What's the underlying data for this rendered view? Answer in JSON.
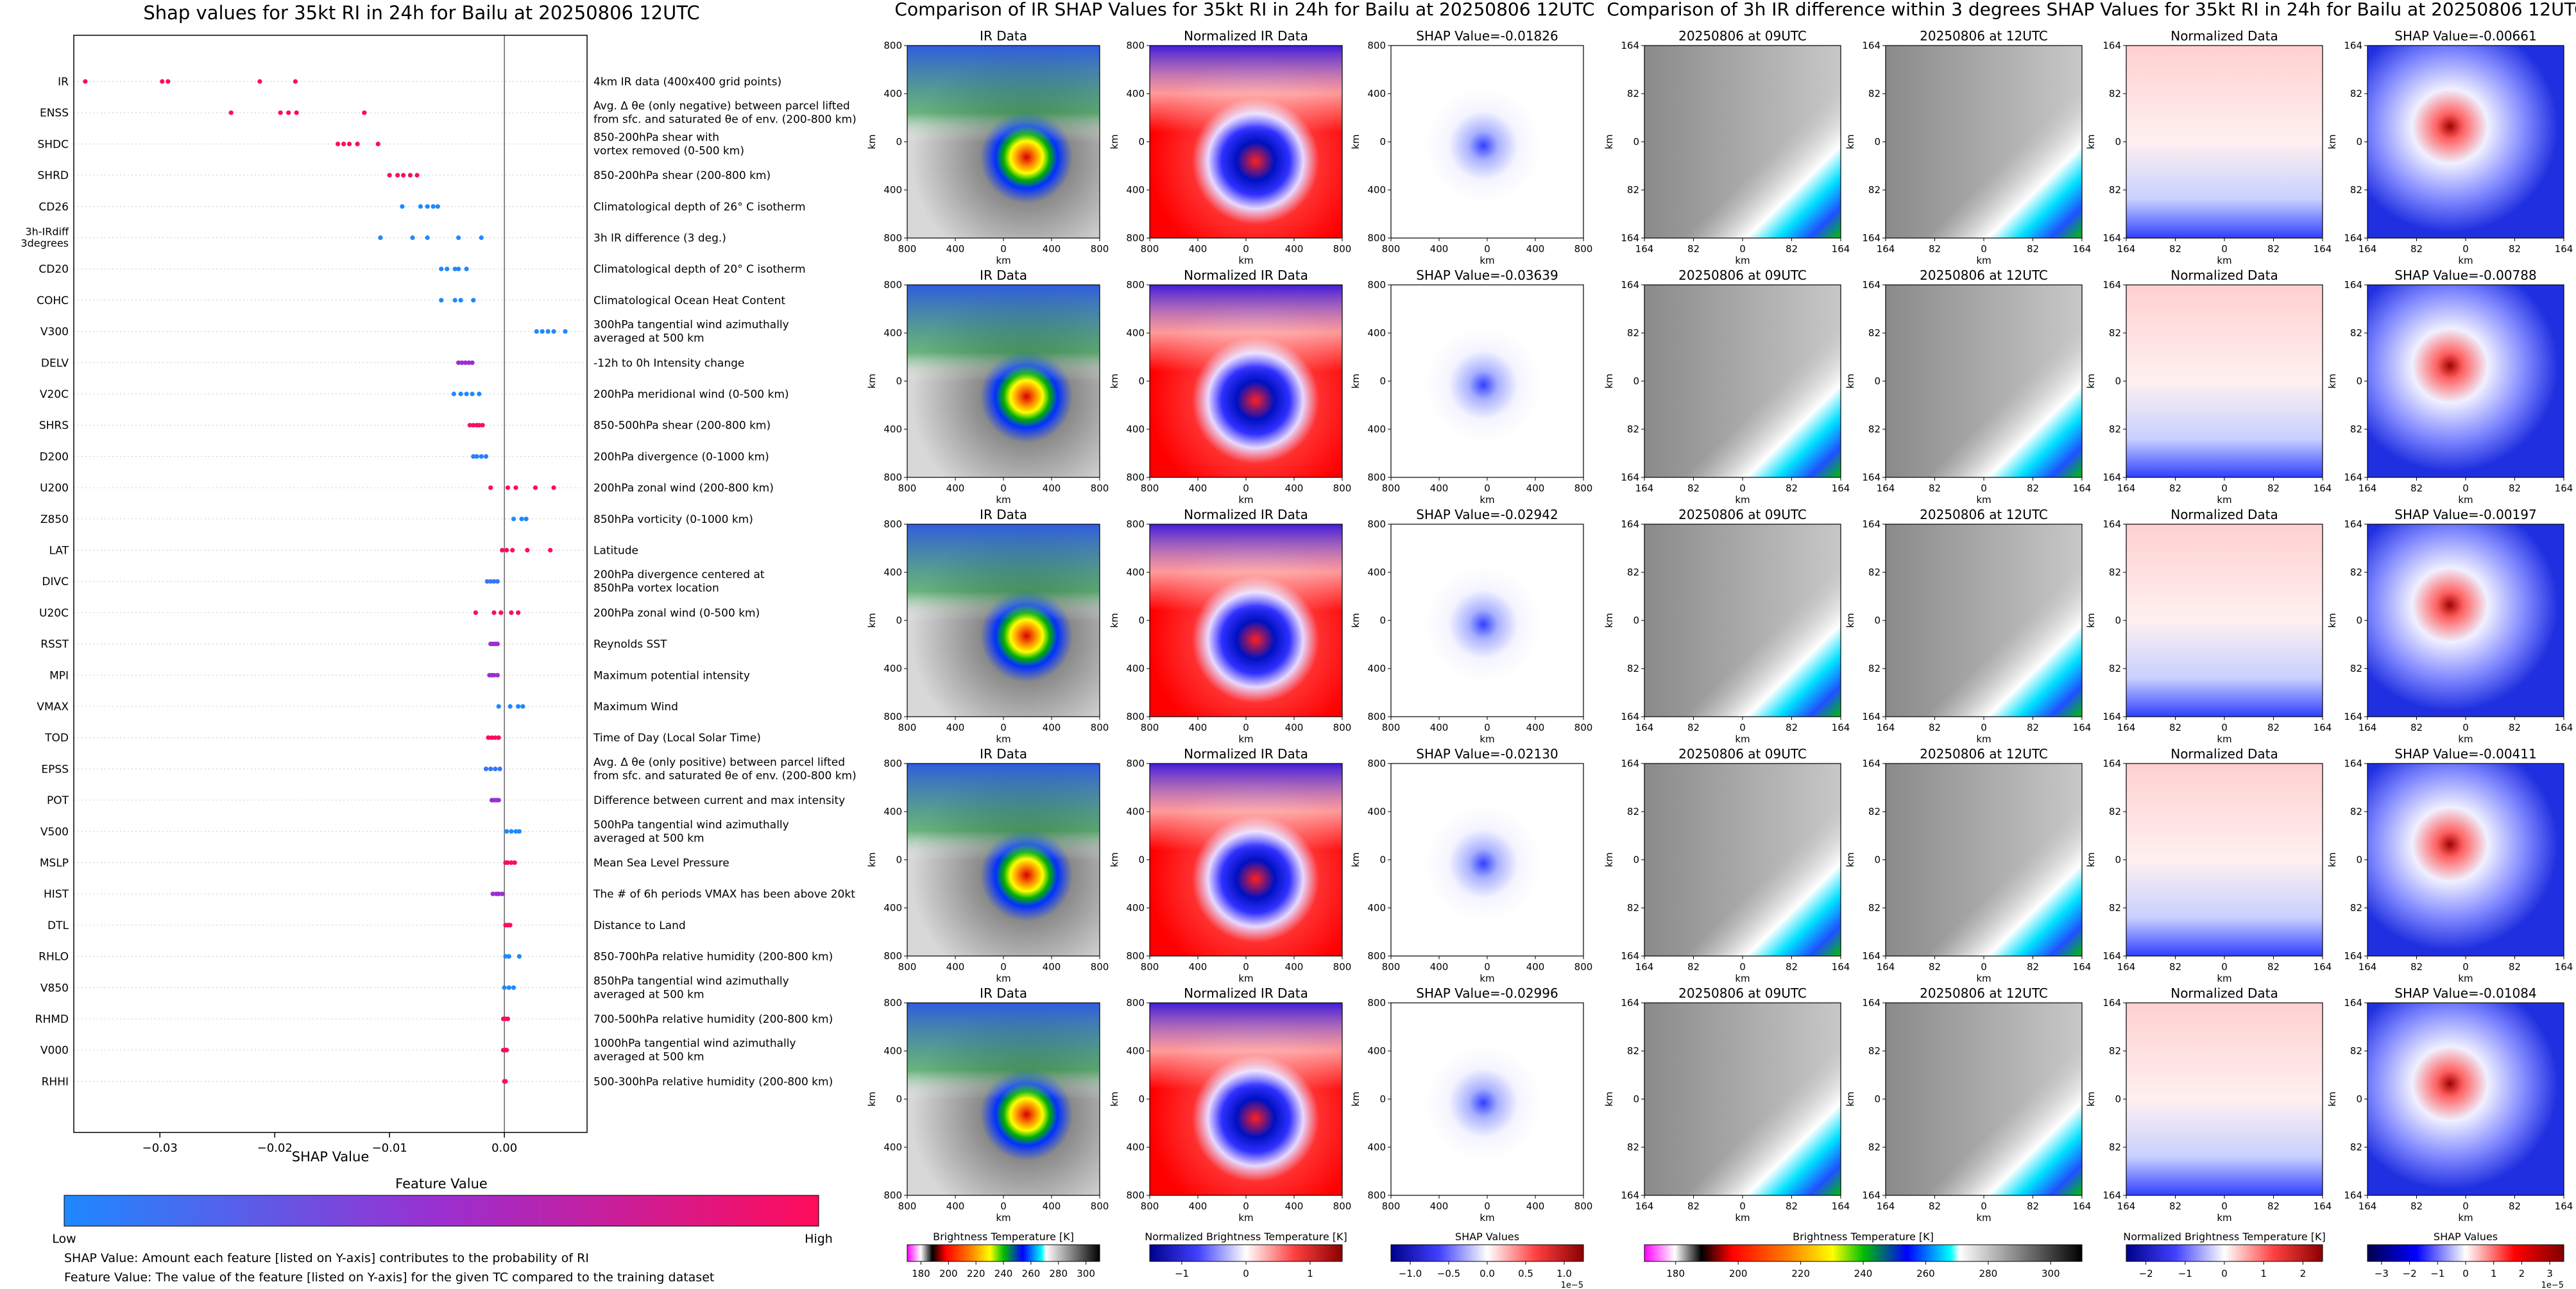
{
  "beeswarm": {
    "title": "Shap values for 35kt RI in 24h for Bailu at 20250806 12UTC",
    "xlabel": "SHAP Value",
    "xticks": [
      "−0.03",
      "−0.02",
      "−0.01",
      "0.00"
    ],
    "colorbar_title": "Feature Value",
    "colorbar_low": "Low",
    "colorbar_high": "High",
    "note1": "SHAP Value: Amount each feature [listed on Y-axis] contributes to the probability of RI",
    "note2": "Feature Value: The value of the feature [listed on Y-axis] for the given TC compared to the training dataset"
  },
  "chart_data": {
    "type": "scatter",
    "xlabel": "SHAP Value",
    "xlim": [
      -0.0375,
      0.0072
    ],
    "colors": {
      "low": "#1e88ff",
      "mid": "#9b2fd0",
      "high": "#ff0b5a"
    },
    "features": [
      {
        "name": "IR",
        "desc": [
          "4km IR data (400x400 grid points)"
        ],
        "points": [
          [
            -0.0365,
            1
          ],
          [
            -0.0298,
            1
          ],
          [
            -0.0293,
            1
          ],
          [
            -0.0213,
            1
          ],
          [
            -0.0182,
            1
          ]
        ]
      },
      {
        "name": "ENSS",
        "desc": [
          "Avg. Δ θe (only negative) between parcel lifted",
          "from sfc. and saturated θe of env. (200-800 km)"
        ],
        "points": [
          [
            -0.0238,
            1
          ],
          [
            -0.0195,
            1
          ],
          [
            -0.0188,
            1
          ],
          [
            -0.0181,
            1
          ],
          [
            -0.0122,
            1
          ]
        ]
      },
      {
        "name": "SHDC",
        "desc": [
          "850-200hPa shear with",
          "vortex removed (0-500 km)"
        ],
        "points": [
          [
            -0.0145,
            1
          ],
          [
            -0.014,
            1
          ],
          [
            -0.0135,
            1
          ],
          [
            -0.0128,
            1
          ],
          [
            -0.011,
            1
          ]
        ]
      },
      {
        "name": "SHRD",
        "desc": [
          "850-200hPa shear (200-800 km)"
        ],
        "points": [
          [
            -0.01,
            0.95
          ],
          [
            -0.0093,
            0.95
          ],
          [
            -0.0088,
            0.95
          ],
          [
            -0.0082,
            0.95
          ],
          [
            -0.0076,
            0.95
          ]
        ]
      },
      {
        "name": "CD26",
        "desc": [
          "Climatological depth of 26° C isotherm"
        ],
        "points": [
          [
            -0.0089,
            0
          ],
          [
            -0.0073,
            0
          ],
          [
            -0.0067,
            0
          ],
          [
            -0.0062,
            0
          ],
          [
            -0.0058,
            0
          ]
        ]
      },
      {
        "name": "3h-IRdiff 3degrees",
        "desc": [
          "3h IR difference (3 deg.)"
        ],
        "points": [
          [
            -0.0108,
            0
          ],
          [
            -0.008,
            0
          ],
          [
            -0.0067,
            0
          ],
          [
            -0.004,
            0
          ],
          [
            -0.002,
            0
          ]
        ]
      },
      {
        "name": "CD20",
        "desc": [
          "Climatological depth of 20° C isotherm"
        ],
        "points": [
          [
            -0.0055,
            0
          ],
          [
            -0.005,
            0
          ],
          [
            -0.0043,
            0
          ],
          [
            -0.004,
            0
          ],
          [
            -0.0033,
            0
          ]
        ]
      },
      {
        "name": "COHC",
        "desc": [
          "Climatological Ocean Heat Content"
        ],
        "points": [
          [
            -0.0055,
            0
          ],
          [
            -0.0043,
            0
          ],
          [
            -0.0038,
            0
          ],
          [
            -0.0027,
            0
          ]
        ]
      },
      {
        "name": "V300",
        "desc": [
          "300hPa tangential wind azimuthally",
          "averaged at 500 km"
        ],
        "points": [
          [
            0.0028,
            0
          ],
          [
            0.0033,
            0
          ],
          [
            0.0038,
            0
          ],
          [
            0.0043,
            0
          ],
          [
            0.0053,
            0
          ]
        ]
      },
      {
        "name": "DELV",
        "desc": [
          "-12h to 0h Intensity change"
        ],
        "points": [
          [
            -0.004,
            0.5
          ],
          [
            -0.0037,
            0.5
          ],
          [
            -0.0034,
            0.5
          ],
          [
            -0.0031,
            0.5
          ],
          [
            -0.0028,
            0.5
          ]
        ]
      },
      {
        "name": "V20C",
        "desc": [
          "200hPa meridional wind (0-500 km)"
        ],
        "points": [
          [
            -0.0044,
            0
          ],
          [
            -0.0038,
            0
          ],
          [
            -0.0033,
            0
          ],
          [
            -0.0028,
            0
          ],
          [
            -0.0022,
            0
          ]
        ]
      },
      {
        "name": "SHRS",
        "desc": [
          "850-500hPa shear (200-800 km)"
        ],
        "points": [
          [
            -0.003,
            0.95
          ],
          [
            -0.0027,
            0.95
          ],
          [
            -0.0024,
            0.95
          ],
          [
            -0.0022,
            0.95
          ],
          [
            -0.0019,
            0.95
          ]
        ]
      },
      {
        "name": "D200",
        "desc": [
          "200hPa divergence (0-1000 km)"
        ],
        "points": [
          [
            -0.0027,
            0.05
          ],
          [
            -0.0024,
            0.05
          ],
          [
            -0.002,
            0.05
          ],
          [
            -0.0016,
            0.05
          ]
        ]
      },
      {
        "name": "U200",
        "desc": [
          "200hPa zonal wind (200-800 km)"
        ],
        "points": [
          [
            -0.0012,
            1
          ],
          [
            0.0003,
            1
          ],
          [
            0.001,
            1
          ],
          [
            0.0027,
            1
          ],
          [
            0.0043,
            1
          ]
        ]
      },
      {
        "name": "Z850",
        "desc": [
          "850hPa vorticity (0-1000 km)"
        ],
        "points": [
          [
            0.0008,
            0
          ],
          [
            0.0015,
            0
          ],
          [
            0.0019,
            0
          ]
        ]
      },
      {
        "name": "LAT",
        "desc": [
          "Latitude"
        ],
        "points": [
          [
            -0.0002,
            1
          ],
          [
            0.0002,
            1
          ],
          [
            0.0007,
            1
          ],
          [
            0.002,
            1
          ],
          [
            0.004,
            1
          ]
        ]
      },
      {
        "name": "DIVC",
        "desc": [
          "200hPa divergence centered at",
          "850hPa vortex location"
        ],
        "points": [
          [
            -0.0015,
            0.1
          ],
          [
            -0.0012,
            0.1
          ],
          [
            -0.0009,
            0.1
          ],
          [
            -0.0006,
            0.1
          ]
        ]
      },
      {
        "name": "U20C",
        "desc": [
          "200hPa zonal wind (0-500 km)"
        ],
        "points": [
          [
            -0.0025,
            1
          ],
          [
            -0.0009,
            1
          ],
          [
            -0.0003,
            1
          ],
          [
            0.0006,
            1
          ],
          [
            0.0012,
            1
          ]
        ]
      },
      {
        "name": "RSST",
        "desc": [
          "Reynolds SST"
        ],
        "points": [
          [
            -0.0012,
            0.5
          ],
          [
            -0.001,
            0.5
          ],
          [
            -0.0008,
            0.5
          ],
          [
            -0.0006,
            0.5
          ]
        ]
      },
      {
        "name": "MPI",
        "desc": [
          "Maximum potential intensity"
        ],
        "points": [
          [
            -0.0013,
            0.5
          ],
          [
            -0.0011,
            0.5
          ],
          [
            -0.0009,
            0.5
          ],
          [
            -0.0006,
            0.5
          ]
        ]
      },
      {
        "name": "VMAX",
        "desc": [
          "Maximum Wind"
        ],
        "points": [
          [
            -0.0005,
            0
          ],
          [
            0.0005,
            0
          ],
          [
            0.0012,
            0
          ],
          [
            0.0016,
            0
          ]
        ]
      },
      {
        "name": "TOD",
        "desc": [
          "Time of Day (Local Solar Time)"
        ],
        "points": [
          [
            -0.0014,
            1
          ],
          [
            -0.0011,
            1
          ],
          [
            -0.0008,
            1
          ],
          [
            -0.0005,
            1
          ]
        ]
      },
      {
        "name": "EPSS",
        "desc": [
          "Avg. Δ θe (only positive) between parcel lifted",
          "from sfc. and saturated θe of env. (200-800 km)"
        ],
        "points": [
          [
            -0.0016,
            0.1
          ],
          [
            -0.0012,
            0.1
          ],
          [
            -0.0008,
            0.1
          ],
          [
            -0.0004,
            0.1
          ]
        ]
      },
      {
        "name": "POT",
        "desc": [
          "Difference between current and max intensity"
        ],
        "points": [
          [
            -0.0011,
            0.5
          ],
          [
            -0.0009,
            0.5
          ],
          [
            -0.0007,
            0.5
          ],
          [
            -0.0005,
            0.5
          ]
        ]
      },
      {
        "name": "V500",
        "desc": [
          "500hPa tangential wind azimuthally",
          "averaged at 500 km"
        ],
        "points": [
          [
            0.0002,
            0
          ],
          [
            0.0006,
            0
          ],
          [
            0.001,
            0
          ],
          [
            0.0013,
            0
          ]
        ]
      },
      {
        "name": "MSLP",
        "desc": [
          "Mean Sea Level Pressure"
        ],
        "points": [
          [
            0.0001,
            1
          ],
          [
            0.0003,
            1
          ],
          [
            0.0006,
            1
          ],
          [
            0.0009,
            1
          ]
        ]
      },
      {
        "name": "HIST",
        "desc": [
          "The # of 6h periods VMAX has been above 20kt"
        ],
        "points": [
          [
            -0.001,
            0.5
          ],
          [
            -0.0007,
            0.5
          ],
          [
            -0.0005,
            0.5
          ],
          [
            -0.0002,
            0.5
          ]
        ]
      },
      {
        "name": "DTL",
        "desc": [
          "Distance to Land"
        ],
        "points": [
          [
            0.0001,
            1
          ],
          [
            0.0003,
            1
          ],
          [
            0.0005,
            1
          ]
        ]
      },
      {
        "name": "RHLO",
        "desc": [
          "850-700hPa relative humidity (200-800 km)"
        ],
        "points": [
          [
            0.0001,
            0
          ],
          [
            0.0004,
            0
          ],
          [
            0.0013,
            0
          ]
        ]
      },
      {
        "name": "V850",
        "desc": [
          "850hPa tangential wind azimuthally",
          "averaged at 500 km"
        ],
        "points": [
          [
            0.0,
            0
          ],
          [
            0.0004,
            0
          ],
          [
            0.0008,
            0
          ]
        ]
      },
      {
        "name": "RHMD",
        "desc": [
          "700-500hPa relative humidity (200-800 km)"
        ],
        "points": [
          [
            -0.0001,
            1
          ],
          [
            0.0001,
            1
          ],
          [
            0.0003,
            1
          ]
        ]
      },
      {
        "name": "V000",
        "desc": [
          "1000hPa tangential wind azimuthally",
          "averaged at 500 km"
        ],
        "points": [
          [
            -0.0001,
            1
          ],
          [
            0.0001,
            1
          ],
          [
            0.0002,
            1
          ]
        ]
      },
      {
        "name": "RHHI",
        "desc": [
          "500-300hPa relative humidity (200-800 km)"
        ],
        "points": [
          [
            0.0,
            1
          ],
          [
            0.0001,
            1
          ]
        ]
      }
    ]
  },
  "ir_panel": {
    "title": "Comparison of IR SHAP Values for 35kt RI in 24h for Bailu at 20250806 12UTC",
    "col_titles": [
      "IR Data",
      "Normalized IR Data"
    ],
    "shap_titles": [
      "SHAP Value=-0.01826",
      "SHAP Value=-0.03639",
      "SHAP Value=-0.02942",
      "SHAP Value=-0.02130",
      "SHAP Value=-0.02996"
    ],
    "yticks": [
      "800",
      "400",
      "0",
      "400",
      "800"
    ],
    "xticks": [
      "800",
      "400",
      "0",
      "400",
      "800"
    ],
    "axis_label": "km",
    "cb1_title": "Brightness Temperature [K]",
    "cb1_ticks": [
      "180",
      "200",
      "220",
      "240",
      "260",
      "280",
      "300"
    ],
    "cb2_title": "Normalized Brightness Temperature [K]",
    "cb2_ticks": [
      "−1",
      "0",
      "1"
    ],
    "cb3_title": "SHAP Values",
    "cb3_ticks": [
      "−1.0",
      "−0.5",
      "0.0",
      "0.5",
      "1.0"
    ],
    "cb3_exp": "1e−5"
  },
  "diff_panel": {
    "title": "Comparison of 3h IR difference within 3 degrees SHAP Values for 35kt RI in 24h for Bailu at 20250806 12UTC",
    "col_titles": [
      "20250806 at 09UTC",
      "20250806 at 12UTC",
      "Normalized Data"
    ],
    "shap_titles": [
      "SHAP Value=-0.00661",
      "SHAP Value=-0.00788",
      "SHAP Value=-0.00197",
      "SHAP Value=-0.00411",
      "SHAP Value=-0.01084"
    ],
    "yticks": [
      "164",
      "82",
      "0",
      "82",
      "164"
    ],
    "xticks": [
      "164",
      "82",
      "0",
      "82",
      "164"
    ],
    "axis_label": "km",
    "cb1_title": "Brightness Temperature [K]",
    "cb1_ticks": [
      "180",
      "200",
      "220",
      "240",
      "260",
      "280",
      "300"
    ],
    "cb2_title": "Normalized Brightness Temperature [K]",
    "cb2_ticks": [
      "−2",
      "−1",
      "0",
      "1",
      "2"
    ],
    "cb3_title": "SHAP Values",
    "cb3_ticks": [
      "−3",
      "−2",
      "−1",
      "0",
      "1",
      "2",
      "3"
    ],
    "cb3_exp": "1e−5"
  }
}
